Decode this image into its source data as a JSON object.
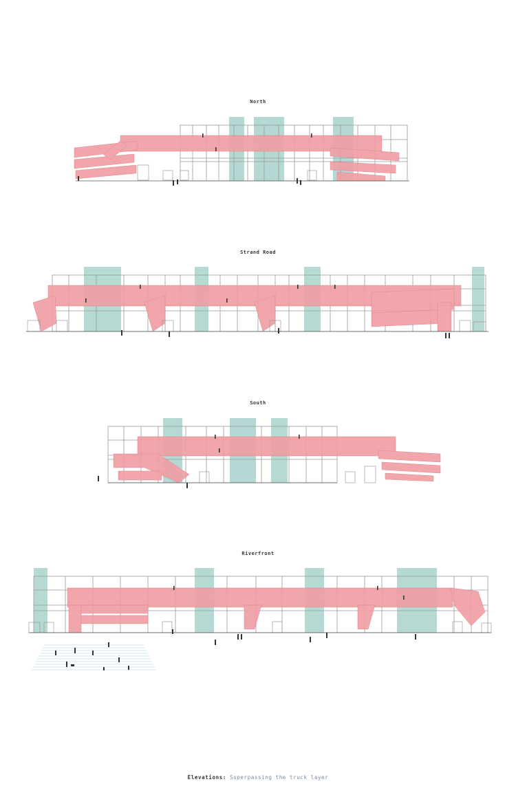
{
  "elevations": {
    "north": {
      "title": "North"
    },
    "strand": {
      "title": "Strand Road"
    },
    "south": {
      "title": "South"
    },
    "riverfront": {
      "title": "Riverfront"
    }
  },
  "caption": {
    "label": "Elevations:",
    "subtitle": "Superpassing the truck layer"
  },
  "colors": {
    "walkway": "#ef9fa4",
    "walkway_edge": "#d88088",
    "tower": "#a9d2cd",
    "structure": "#9a9a9a",
    "ground": "#555555",
    "plaza_hatch": "#9fd8e6",
    "figure": "#333333"
  }
}
